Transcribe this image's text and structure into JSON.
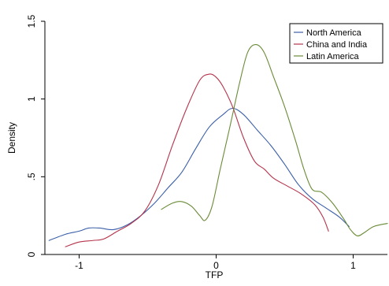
{
  "chart_data": {
    "type": "line",
    "title": "",
    "xlabel": "TFP",
    "ylabel": "Density",
    "xlim": [
      -1.25,
      1.25
    ],
    "ylim": [
      0,
      1.5
    ],
    "xticks": [
      -1,
      0,
      1
    ],
    "xtick_labels": [
      "-1",
      "0",
      "1"
    ],
    "yticks": [
      0,
      0.5,
      1,
      1.5
    ],
    "ytick_labels": [
      "0",
      ".5",
      "1",
      "1.5"
    ],
    "grid": false,
    "legend": {
      "placement": "top-right"
    },
    "series": [
      {
        "name": "North America",
        "color": "#3b5fa8",
        "points": [
          [
            -1.22,
            0.09
          ],
          [
            -1.1,
            0.13
          ],
          [
            -1.0,
            0.15
          ],
          [
            -0.93,
            0.17
          ],
          [
            -0.85,
            0.17
          ],
          [
            -0.75,
            0.16
          ],
          [
            -0.65,
            0.19
          ],
          [
            -0.55,
            0.25
          ],
          [
            -0.45,
            0.33
          ],
          [
            -0.35,
            0.43
          ],
          [
            -0.25,
            0.53
          ],
          [
            -0.15,
            0.68
          ],
          [
            -0.05,
            0.82
          ],
          [
            0.05,
            0.9
          ],
          [
            0.12,
            0.94
          ],
          [
            0.2,
            0.9
          ],
          [
            0.3,
            0.8
          ],
          [
            0.4,
            0.7
          ],
          [
            0.5,
            0.58
          ],
          [
            0.6,
            0.45
          ],
          [
            0.7,
            0.36
          ],
          [
            0.8,
            0.3
          ],
          [
            0.9,
            0.24
          ],
          [
            0.97,
            0.18
          ]
        ]
      },
      {
        "name": "China and India",
        "color": "#b5334b",
        "points": [
          [
            -1.1,
            0.05
          ],
          [
            -1.0,
            0.08
          ],
          [
            -0.9,
            0.09
          ],
          [
            -0.82,
            0.1
          ],
          [
            -0.72,
            0.15
          ],
          [
            -0.62,
            0.2
          ],
          [
            -0.52,
            0.28
          ],
          [
            -0.42,
            0.45
          ],
          [
            -0.32,
            0.7
          ],
          [
            -0.22,
            0.93
          ],
          [
            -0.12,
            1.12
          ],
          [
            -0.05,
            1.16
          ],
          [
            0.0,
            1.14
          ],
          [
            0.05,
            1.08
          ],
          [
            0.12,
            0.95
          ],
          [
            0.2,
            0.75
          ],
          [
            0.28,
            0.6
          ],
          [
            0.35,
            0.55
          ],
          [
            0.42,
            0.49
          ],
          [
            0.52,
            0.44
          ],
          [
            0.62,
            0.39
          ],
          [
            0.72,
            0.32
          ],
          [
            0.78,
            0.24
          ],
          [
            0.82,
            0.15
          ]
        ]
      },
      {
        "name": "Latin America",
        "color": "#6a8b37",
        "points": [
          [
            -0.4,
            0.29
          ],
          [
            -0.32,
            0.33
          ],
          [
            -0.25,
            0.34
          ],
          [
            -0.18,
            0.31
          ],
          [
            -0.12,
            0.25
          ],
          [
            -0.08,
            0.22
          ],
          [
            -0.03,
            0.31
          ],
          [
            0.03,
            0.55
          ],
          [
            0.1,
            0.82
          ],
          [
            0.17,
            1.1
          ],
          [
            0.23,
            1.3
          ],
          [
            0.29,
            1.35
          ],
          [
            0.35,
            1.3
          ],
          [
            0.42,
            1.14
          ],
          [
            0.5,
            0.95
          ],
          [
            0.58,
            0.73
          ],
          [
            0.64,
            0.55
          ],
          [
            0.7,
            0.42
          ],
          [
            0.77,
            0.4
          ],
          [
            0.85,
            0.33
          ],
          [
            0.93,
            0.23
          ],
          [
            0.98,
            0.16
          ],
          [
            1.03,
            0.12
          ],
          [
            1.08,
            0.14
          ],
          [
            1.15,
            0.18
          ],
          [
            1.25,
            0.2
          ]
        ]
      }
    ]
  }
}
